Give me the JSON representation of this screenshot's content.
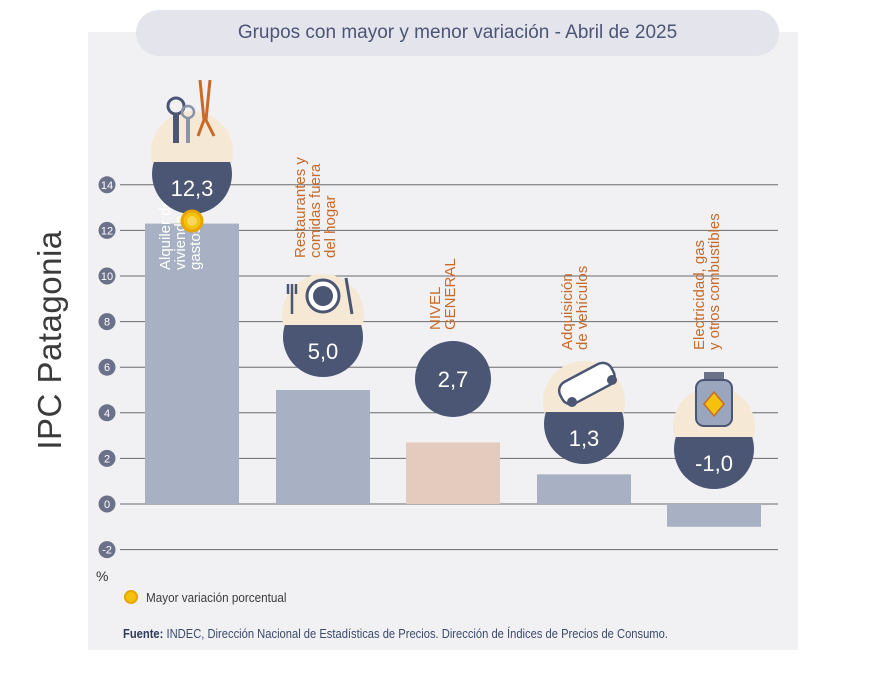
{
  "side_label": "IPC Patagonia",
  "legend_label": "Mayor variación porcentual",
  "source_bold": "Fuente:",
  "source_text": " INDEC, Dirección Nacional de Estadísticas de Precios. Dirección de Índices de Precios de Consumo.",
  "colors": {
    "bar": "#a7b1c3",
    "bar_general": "#e5cbbd",
    "circle": "#4b5574",
    "icon_bg": "#f5e9d6",
    "highlight": "#f4c20d",
    "grid": "#6b6b6b",
    "tick_badge": "#6b7189",
    "label_orange": "#c76a2a",
    "label_white": "#ffffff",
    "value_general": "#f3c54a"
  },
  "chart_data": {
    "type": "bar",
    "title": "Grupos con mayor y menor variación - Abril de 2025",
    "ylabel": "%",
    "ylim": [
      -2,
      14
    ],
    "yticks": [
      -2,
      0,
      2,
      4,
      6,
      8,
      10,
      12,
      14
    ],
    "grid": true,
    "categories": [
      [
        "Alquiler de la",
        "vivienda y",
        "gastos conexos"
      ],
      [
        "Restaurantes y",
        "comidas fuera",
        "del hogar"
      ],
      [
        "NIVEL",
        "GENERAL"
      ],
      [
        "Adquisición",
        "de vehículos"
      ],
      [
        "Electricidad, gas",
        "y otros combustibles"
      ]
    ],
    "values": [
      12.3,
      5.0,
      2.7,
      1.3,
      -1.0
    ],
    "value_labels": [
      "12,3",
      "5,0",
      "2,7",
      "1,3",
      "-1,0"
    ],
    "icons": [
      "keys-and-pliers-icon",
      "plate-and-cutlery-icon",
      "",
      "car-icon",
      "gas-cylinder-icon"
    ],
    "highlight_index": 0
  }
}
